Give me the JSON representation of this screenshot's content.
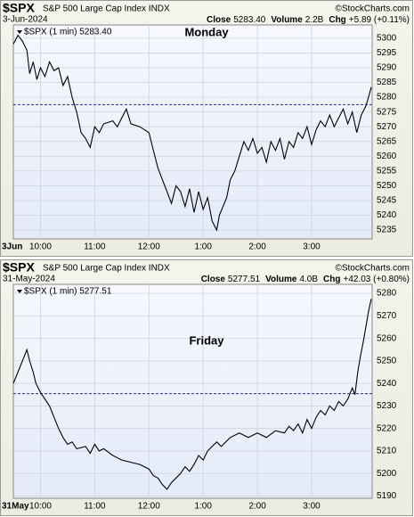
{
  "chart_data": [
    {
      "type": "line",
      "symbol": "$SPX",
      "title": "S&P 500 Large Cap Index INDX",
      "credit": "©StockCharts.com",
      "date": "3-Jun-2024",
      "stats": [
        {
          "label": "Close",
          "value": "5283.40"
        },
        {
          "label": "Volume",
          "value": "2.2B"
        },
        {
          "label": "Chg",
          "value": "+5.89 (+0.11%)"
        }
      ],
      "legend": "$SPX (1 min) 5283.40",
      "annotation": "Monday",
      "x_start_label": "3Jun",
      "color": "#000000",
      "reference_line": 5277.51,
      "x": [
        0,
        5,
        10,
        15,
        18,
        22,
        26,
        30,
        35,
        40,
        45,
        50,
        55,
        60,
        65,
        70,
        75,
        80,
        85,
        90,
        95,
        100,
        110,
        115,
        120,
        125,
        130,
        140,
        150,
        155,
        160,
        165,
        170,
        175,
        180,
        185,
        190,
        195,
        200,
        205,
        210,
        215,
        220,
        225,
        228,
        232,
        236,
        240,
        245,
        250,
        255,
        260,
        265,
        270,
        275,
        280,
        285,
        290,
        295,
        300,
        305,
        310,
        315,
        320,
        325,
        330,
        335,
        340,
        345,
        350,
        355,
        360,
        365,
        370,
        375,
        380,
        385,
        390,
        393,
        396
      ],
      "values": [
        5298,
        5301,
        5299,
        5296,
        5288,
        5292,
        5286,
        5290,
        5287,
        5292,
        5289,
        5290,
        5284,
        5287,
        5280,
        5275,
        5268,
        5266,
        5263,
        5270,
        5268,
        5271,
        5272,
        5270,
        5273,
        5276,
        5271,
        5270,
        5268,
        5262,
        5256,
        5252,
        5248,
        5244,
        5250,
        5248,
        5243,
        5249,
        5241,
        5248,
        5242,
        5246,
        5238,
        5235,
        5240,
        5243,
        5246,
        5252,
        5255,
        5260,
        5265,
        5262,
        5266,
        5261,
        5263,
        5258,
        5265,
        5262,
        5266,
        5259,
        5265,
        5263,
        5268,
        5266,
        5270,
        5264,
        5269,
        5272,
        5270,
        5274,
        5270,
        5273,
        5276,
        5271,
        5275,
        5268,
        5274,
        5277,
        5280,
        5283.4
      ],
      "xlim": [
        0,
        397
      ],
      "xticks": [
        {
          "value": 30,
          "label": "10:00"
        },
        {
          "value": 90,
          "label": "11:00"
        },
        {
          "value": 150,
          "label": "12:00"
        },
        {
          "value": 210,
          "label": "1:00"
        },
        {
          "value": 270,
          "label": "2:00"
        },
        {
          "value": 330,
          "label": "3:00"
        }
      ],
      "ylim": [
        5232,
        5304.5
      ],
      "yticks": [
        5235,
        5240,
        5245,
        5250,
        5255,
        5260,
        5265,
        5270,
        5275,
        5280,
        5285,
        5290,
        5295,
        5300
      ],
      "grid": true
    },
    {
      "type": "line",
      "symbol": "$SPX",
      "title": "S&P 500 Large Cap Index INDX",
      "credit": "©StockCharts.com",
      "date": "31-May-2024",
      "stats": [
        {
          "label": "Close",
          "value": "5277.51"
        },
        {
          "label": "Volume",
          "value": "4.0B"
        },
        {
          "label": "Chg",
          "value": "+42.03 (+0.80%)"
        }
      ],
      "legend": "$SPX (1 min) 5277.51",
      "annotation": "Friday",
      "x_start_label": "31May",
      "color": "#000000",
      "reference_line": 5235.48,
      "x": [
        0,
        5,
        10,
        15,
        18,
        22,
        25,
        30,
        35,
        40,
        45,
        50,
        55,
        60,
        65,
        70,
        80,
        85,
        90,
        95,
        100,
        110,
        120,
        130,
        140,
        150,
        155,
        160,
        165,
        170,
        175,
        180,
        185,
        190,
        195,
        200,
        205,
        210,
        215,
        220,
        225,
        230,
        240,
        250,
        260,
        270,
        280,
        290,
        300,
        305,
        310,
        315,
        320,
        325,
        330,
        335,
        340,
        345,
        350,
        355,
        360,
        365,
        370,
        375,
        378,
        381,
        384,
        387,
        390,
        393,
        396
      ],
      "values": [
        5240,
        5245,
        5250,
        5255,
        5250,
        5245,
        5240,
        5236,
        5233,
        5230,
        5225,
        5220,
        5216,
        5213,
        5214,
        5211,
        5212,
        5209,
        5213,
        5210,
        5211,
        5208,
        5206,
        5205,
        5204,
        5202,
        5199,
        5198,
        5195,
        5193,
        5196,
        5198,
        5200,
        5203,
        5201,
        5204,
        5208,
        5206,
        5210,
        5212,
        5214,
        5212,
        5216,
        5218,
        5216,
        5218,
        5216,
        5219,
        5218,
        5221,
        5219,
        5222,
        5218,
        5224,
        5220,
        5225,
        5228,
        5226,
        5230,
        5228,
        5232,
        5230,
        5233,
        5238,
        5235,
        5245,
        5252,
        5258,
        5265,
        5272,
        5277.51
      ],
      "xlim": [
        0,
        397
      ],
      "xticks": [
        {
          "value": 30,
          "label": "10:00"
        },
        {
          "value": 90,
          "label": "11:00"
        },
        {
          "value": 150,
          "label": "12:00"
        },
        {
          "value": 210,
          "label": "1:00"
        },
        {
          "value": 270,
          "label": "2:00"
        },
        {
          "value": 330,
          "label": "3:00"
        }
      ],
      "ylim": [
        5189,
        5284
      ],
      "yticks": [
        5190,
        5200,
        5210,
        5220,
        5230,
        5240,
        5250,
        5260,
        5270,
        5280
      ],
      "grid": true
    }
  ]
}
